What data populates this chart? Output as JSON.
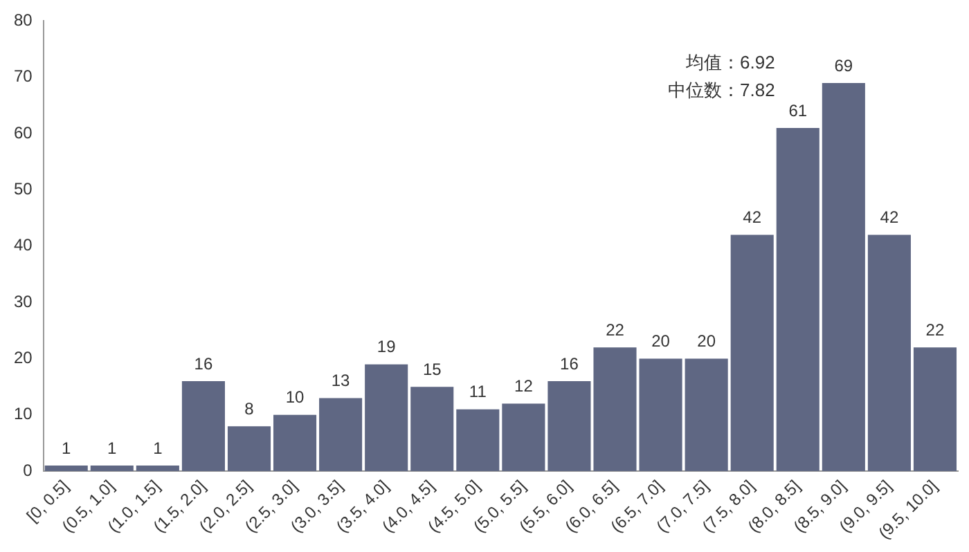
{
  "chart_data": {
    "type": "bar",
    "categories": [
      "[0, 0.5]",
      "(0.5, 1.0]",
      "(1.0, 1.5]",
      "(1.5, 2.0]",
      "(2.0, 2.5]",
      "(2.5, 3.0]",
      "(3.0, 3.5]",
      "(3.5, 4.0]",
      "(4.0, 4.5]",
      "(4.5, 5.0]",
      "(5.0, 5.5]",
      "(5.5, 6.0]",
      "(6.0, 6.5]",
      "(6.5, 7.0]",
      "(7.0, 7.5]",
      "(7.5, 8.0]",
      "(8.0, 8.5]",
      "(8.5, 9.0]",
      "(9.0, 9.5]",
      "(9.5, 10.0]"
    ],
    "values": [
      1,
      1,
      1,
      16,
      8,
      10,
      13,
      19,
      15,
      11,
      12,
      16,
      22,
      20,
      20,
      42,
      61,
      69,
      42,
      22
    ],
    "color": "#5f6783",
    "ylim": [
      0,
      80
    ],
    "yticks": [
      0,
      10,
      20,
      30,
      40,
      50,
      60,
      70,
      80
    ],
    "grid": false,
    "legend": false,
    "data_labels": true,
    "annotations": [
      "均值：6.92",
      "中位数：7.82"
    ]
  }
}
